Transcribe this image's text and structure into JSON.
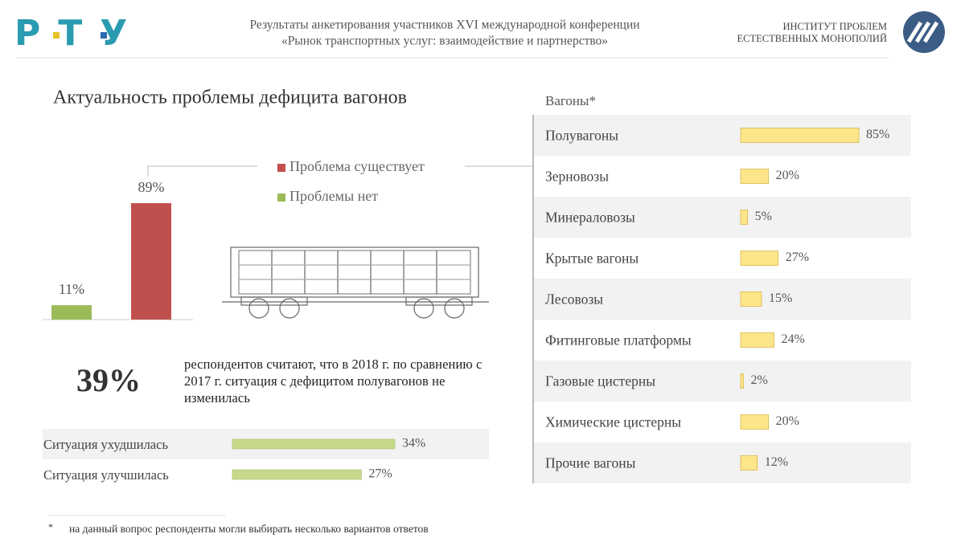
{
  "header": {
    "title_lines": [
      "Результаты анкетирования участников XVI международной конференции",
      "«Рынок транспортных услуг: взаимодействие и партнерство»"
    ],
    "institute_lines": [
      "ИНСТИТУТ ПРОБЛЕМ",
      "ЕСТЕСТВЕННЫХ МОНОПОЛИЙ"
    ]
  },
  "stat": {
    "value": "39%",
    "text": "респондентов считают, что в 2018 г. по сравнению с 2017 г. ситуация с дефицитом полувагонов не изменилась"
  },
  "footnote": {
    "mark": "*",
    "text": "на данный вопрос респонденты могли выбирать несколько вариантов ответов"
  },
  "chart_data": [
    {
      "type": "bar",
      "title": "Актуальность проблемы дефицита вагонов",
      "categories": [
        null
      ],
      "series": [
        {
          "name": "Проблема существует",
          "color": "#c0504d",
          "values": [
            89
          ],
          "value_labels": [
            "89%"
          ]
        },
        {
          "name": "Проблемы нет",
          "color": "#9bbb59",
          "values": [
            11
          ],
          "value_labels": [
            "11%"
          ]
        }
      ]
    },
    {
      "type": "hbar",
      "categories": [
        "Ситуация ухудшилась",
        "Ситуация улучшилась"
      ],
      "values": [
        34,
        27
      ],
      "value_labels": [
        "34%",
        "27%"
      ],
      "color": "#c6d98a"
    },
    {
      "type": "hbar",
      "title": "Вагоны*",
      "categories": [
        "Полувагоны",
        "Зерновозы",
        "Минераловозы",
        "Крытые вагоны",
        "Лесовозы",
        "Фитинговые платформы",
        "Газовые цистерны",
        "Химические цистерны",
        "Прочие вагоны"
      ],
      "values": [
        85,
        20,
        5,
        27,
        15,
        24,
        2,
        20,
        12
      ],
      "value_labels": [
        "85%",
        "20%",
        "5%",
        "27%",
        "15%",
        "24%",
        "2%",
        "20%",
        "12%"
      ],
      "color": "#fde58a"
    }
  ]
}
